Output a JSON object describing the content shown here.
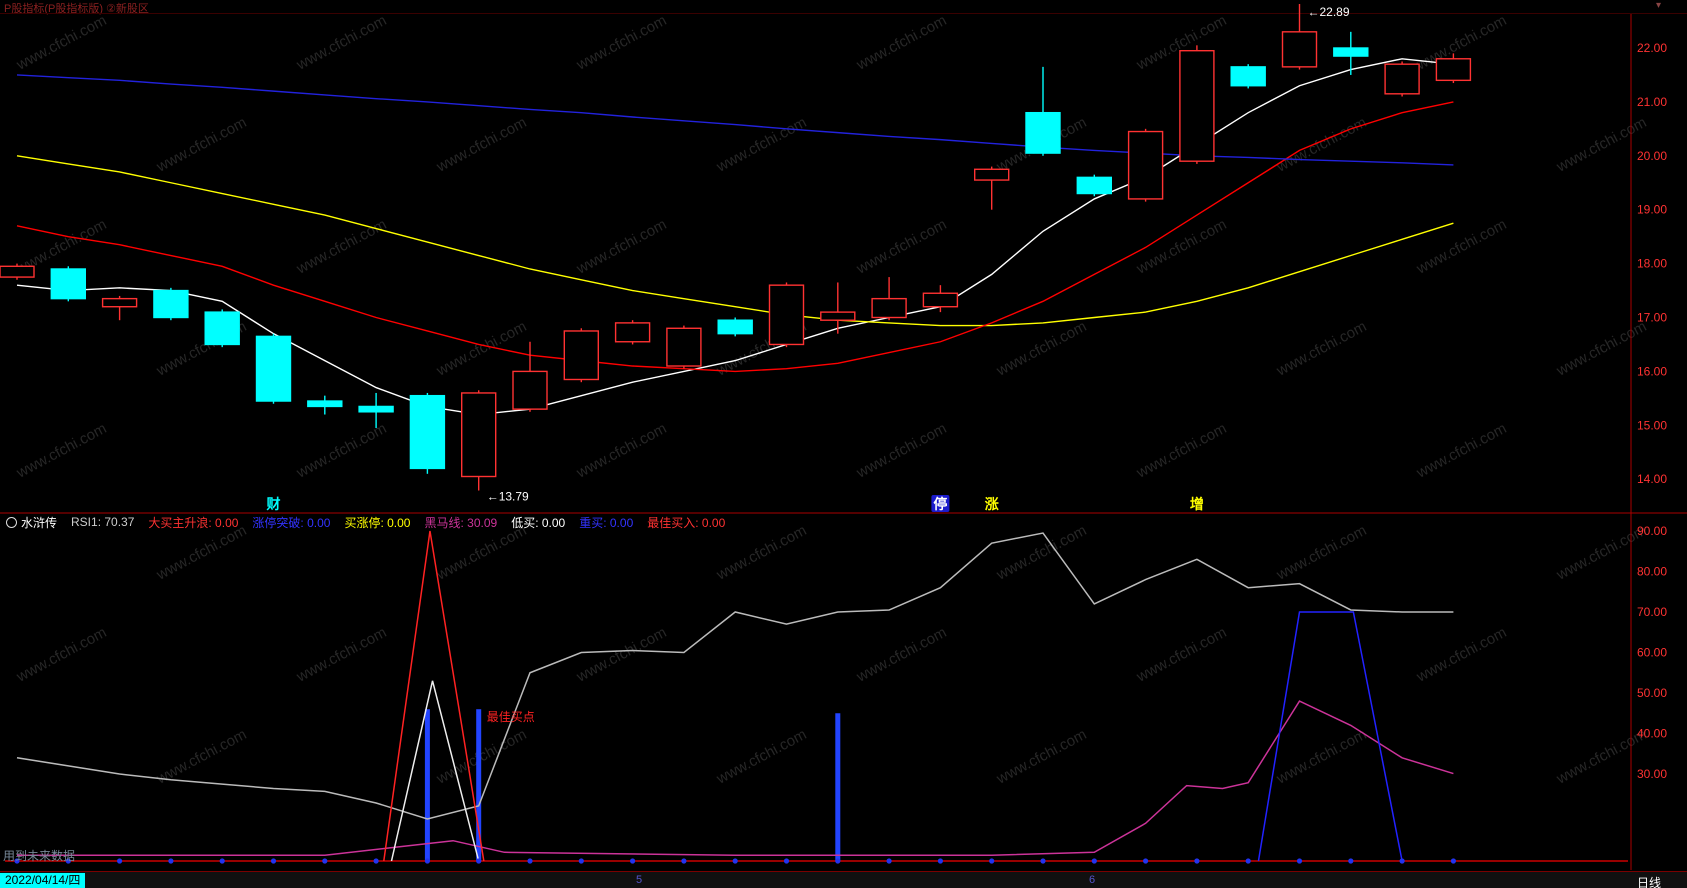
{
  "titlebar": {
    "left_text": "P股指标(P股指标版) ②新股区",
    "right_icon": "▾"
  },
  "watermark": {
    "text": "www.cfchi.com"
  },
  "indicator_panel": {
    "name": "水浒传",
    "fields": [
      {
        "label": "RSI1",
        "value": "70.37",
        "color": "#cccccc"
      },
      {
        "label": "大买主升浪",
        "value": "0.00",
        "color": "#ff3232"
      },
      {
        "label": "涨停突破",
        "value": "0.00",
        "color": "#3333ff"
      },
      {
        "label": "买涨停",
        "value": "0.00",
        "color": "#ffff00"
      },
      {
        "label": "黑马线",
        "value": "30.09",
        "color": "#cc3399"
      },
      {
        "label": "低买",
        "value": "0.00",
        "color": "#ffffff"
      },
      {
        "label": "重买",
        "value": "0.00",
        "color": "#3333ff"
      },
      {
        "label": "最佳买入",
        "value": "0.00",
        "color": "#ff3232"
      }
    ],
    "signal_text": "最佳买点"
  },
  "status_bar": {
    "date": "2022/04/14/四",
    "marks": [
      {
        "text": "5",
        "x": 636
      },
      {
        "text": "6",
        "x": 1089
      }
    ],
    "period": "日线"
  },
  "footer_note": "用到未来数据",
  "chart_data": [
    {
      "type": "candlestick",
      "title": "日K线主图",
      "ylim": [
        13.5,
        22.5
      ],
      "y_ticks": [
        22,
        21,
        20,
        19,
        18,
        17,
        16,
        15,
        14
      ],
      "y_tick_labels": [
        "22.00",
        "21.00",
        "20.00",
        "19.00",
        "18.00",
        "17.00",
        "16.00",
        "15.00",
        "14.00"
      ],
      "tick_color": "#ff3232",
      "candles_format": [
        "type",
        "open",
        "high",
        "low",
        "close"
      ],
      "candles": [
        [
          "up",
          17.75,
          18.0,
          17.7,
          17.95
        ],
        [
          "down",
          17.9,
          17.95,
          17.3,
          17.35
        ],
        [
          "up",
          17.2,
          17.4,
          16.95,
          17.35
        ],
        [
          "down",
          17.5,
          17.55,
          16.95,
          17.0
        ],
        [
          "down",
          17.1,
          17.15,
          16.45,
          16.5
        ],
        [
          "down",
          16.65,
          16.7,
          15.4,
          15.45
        ],
        [
          "down",
          15.45,
          15.55,
          15.2,
          15.35
        ],
        [
          "down",
          15.35,
          15.6,
          14.95,
          15.25
        ],
        [
          "down",
          15.55,
          15.6,
          14.1,
          14.2
        ],
        [
          "up",
          14.05,
          15.65,
          13.79,
          15.6
        ],
        [
          "up",
          15.3,
          16.55,
          15.25,
          16.0
        ],
        [
          "up",
          15.85,
          16.8,
          15.8,
          16.75
        ],
        [
          "up",
          16.55,
          16.95,
          16.5,
          16.9
        ],
        [
          "up",
          16.1,
          16.85,
          16.05,
          16.8
        ],
        [
          "down",
          16.95,
          17.0,
          16.65,
          16.7
        ],
        [
          "up",
          16.5,
          17.65,
          16.45,
          17.6
        ],
        [
          "up",
          16.95,
          17.65,
          16.7,
          17.1
        ],
        [
          "up",
          17.0,
          17.75,
          16.95,
          17.35
        ],
        [
          "up",
          17.2,
          17.6,
          17.1,
          17.45
        ],
        [
          "up",
          19.55,
          19.8,
          19.0,
          19.75
        ],
        [
          "down",
          20.8,
          21.65,
          20.0,
          20.05
        ],
        [
          "down",
          19.6,
          19.65,
          19.25,
          19.3
        ],
        [
          "up",
          19.2,
          20.5,
          19.15,
          20.45
        ],
        [
          "up",
          19.9,
          22.05,
          19.85,
          21.95
        ],
        [
          "down",
          21.65,
          21.7,
          21.25,
          21.3
        ],
        [
          "up",
          21.65,
          22.89,
          21.6,
          22.3
        ],
        [
          "down",
          22.0,
          22.3,
          21.5,
          21.85
        ],
        [
          "up",
          21.15,
          21.75,
          21.1,
          21.7
        ],
        [
          "up",
          21.4,
          21.9,
          21.35,
          21.8
        ]
      ],
      "ma_series": [
        {
          "name": "MA-short-white",
          "color": "#ffffff",
          "values": [
            17.6,
            17.5,
            17.55,
            17.5,
            17.3,
            16.7,
            16.2,
            15.7,
            15.35,
            15.2,
            15.3,
            15.55,
            15.8,
            16.0,
            16.2,
            16.5,
            16.8,
            17.0,
            17.2,
            17.8,
            18.6,
            19.2,
            19.6,
            20.2,
            20.8,
            21.3,
            21.6,
            21.8,
            21.7
          ]
        },
        {
          "name": "MA-mid-yellow",
          "color": "#ffff00",
          "values": [
            20.0,
            19.85,
            19.7,
            19.5,
            19.3,
            19.1,
            18.9,
            18.65,
            18.4,
            18.15,
            17.9,
            17.7,
            17.5,
            17.35,
            17.2,
            17.05,
            16.95,
            16.9,
            16.85,
            16.85,
            16.9,
            17.0,
            17.1,
            17.3,
            17.55,
            17.85,
            18.15,
            18.45,
            18.75
          ]
        },
        {
          "name": "MA-mid-red",
          "color": "#ff0000",
          "values": [
            18.7,
            18.5,
            18.35,
            18.15,
            17.95,
            17.6,
            17.3,
            17.0,
            16.75,
            16.5,
            16.3,
            16.2,
            16.1,
            16.05,
            16.0,
            16.05,
            16.15,
            16.35,
            16.55,
            16.9,
            17.3,
            17.8,
            18.3,
            18.9,
            19.5,
            20.1,
            20.5,
            20.8,
            21.0
          ]
        },
        {
          "name": "MA-long-blue",
          "color": "#2222dd",
          "values": [
            21.5,
            21.45,
            21.4,
            21.33,
            21.27,
            21.2,
            21.13,
            21.06,
            21.0,
            20.93,
            20.86,
            20.8,
            20.72,
            20.65,
            20.58,
            20.5,
            20.43,
            20.36,
            20.3,
            20.23,
            20.16,
            20.1,
            20.05,
            20.0,
            19.97,
            19.93,
            19.9,
            19.87,
            19.83
          ]
        }
      ],
      "annotations": [
        {
          "text": "←22.89",
          "candle": 25,
          "color": "#ffffff"
        },
        {
          "text": "←13.79",
          "candle": 9,
          "color": "#ffffff"
        }
      ],
      "event_markers": [
        {
          "text": "财",
          "candle": 5,
          "style": "cyan"
        },
        {
          "text": "停",
          "candle": 18,
          "style": "blue-badge"
        },
        {
          "text": "涨",
          "candle": 19,
          "style": "yellow"
        },
        {
          "text": "增",
          "candle": 23,
          "style": "yellow"
        }
      ]
    },
    {
      "type": "line",
      "title": "水浒传副图指标",
      "ylim": [
        0,
        95
      ],
      "y_ticks": [
        90,
        80,
        70,
        60,
        50,
        40,
        30
      ],
      "y_tick_labels": [
        "90.00",
        "80.00",
        "70.00",
        "60.00",
        "50.00",
        "40.00",
        "30.00"
      ],
      "tick_color": "#ff3232",
      "series": [
        {
          "name": "RSI1",
          "color": "#bbbbbb",
          "points": [
            [
              0,
              34
            ],
            [
              1,
              32
            ],
            [
              2,
              30
            ],
            [
              3,
              28
            ],
            [
              4,
              26.5
            ],
            [
              5,
              25
            ],
            [
              6,
              24
            ],
            [
              7,
              20
            ],
            [
              8,
              14.5
            ],
            [
              9,
              19
            ],
            [
              10,
              55
            ],
            [
              11,
              60
            ],
            [
              12,
              60.5
            ],
            [
              13,
              60
            ],
            [
              14,
              70
            ],
            [
              15,
              67
            ],
            [
              16,
              70
            ],
            [
              17,
              70.5
            ],
            [
              18,
              76
            ],
            [
              19,
              87
            ],
            [
              20,
              89.5
            ],
            [
              21,
              72
            ],
            [
              22,
              78
            ],
            [
              23,
              83
            ],
            [
              24,
              76
            ],
            [
              25,
              77
            ],
            [
              26,
              70.5
            ],
            [
              27,
              70
            ],
            [
              28,
              70
            ]
          ]
        },
        {
          "name": "黑马线",
          "color": "#cc3399",
          "points": [
            [
              0,
              2
            ],
            [
              6,
              2
            ],
            [
              7.5,
              5
            ],
            [
              8.5,
              7
            ],
            [
              9.5,
              3
            ],
            [
              14,
              2
            ],
            [
              19,
              2
            ],
            [
              21,
              3
            ],
            [
              22,
              13
            ],
            [
              22.8,
              26
            ],
            [
              23.5,
              25
            ],
            [
              24,
              27
            ],
            [
              25,
              48
            ],
            [
              26,
              42
            ],
            [
              27,
              34
            ],
            [
              28,
              30.1
            ]
          ]
        },
        {
          "name": "大买主升浪尖峰",
          "color": "#ff2222",
          "points": [
            [
              7.15,
              0
            ],
            [
              8.05,
              90
            ],
            [
              9.1,
              0
            ]
          ]
        },
        {
          "name": "低买尖峰",
          "color": "#eeeeee",
          "points": [
            [
              7.3,
              0
            ],
            [
              8.1,
              53
            ],
            [
              9,
              0
            ]
          ]
        },
        {
          "name": "重买平台",
          "color": "#2222ff",
          "points": [
            [
              24.2,
              0
            ],
            [
              25,
              70
            ],
            [
              26.05,
              70
            ],
            [
              27,
              0
            ]
          ]
        }
      ],
      "bars": {
        "color": "#2244ff",
        "items": [
          {
            "i": 8,
            "v": 46
          },
          {
            "i": 9,
            "v": 46
          },
          {
            "i": 16,
            "v": 45
          }
        ]
      },
      "baseline": {
        "color": "#cc0000",
        "value": 0
      },
      "dots": {
        "color": "#2233ee",
        "count": 29
      },
      "signal": {
        "text": "最佳买点",
        "candle": 9,
        "color": "#ff2222"
      }
    }
  ]
}
